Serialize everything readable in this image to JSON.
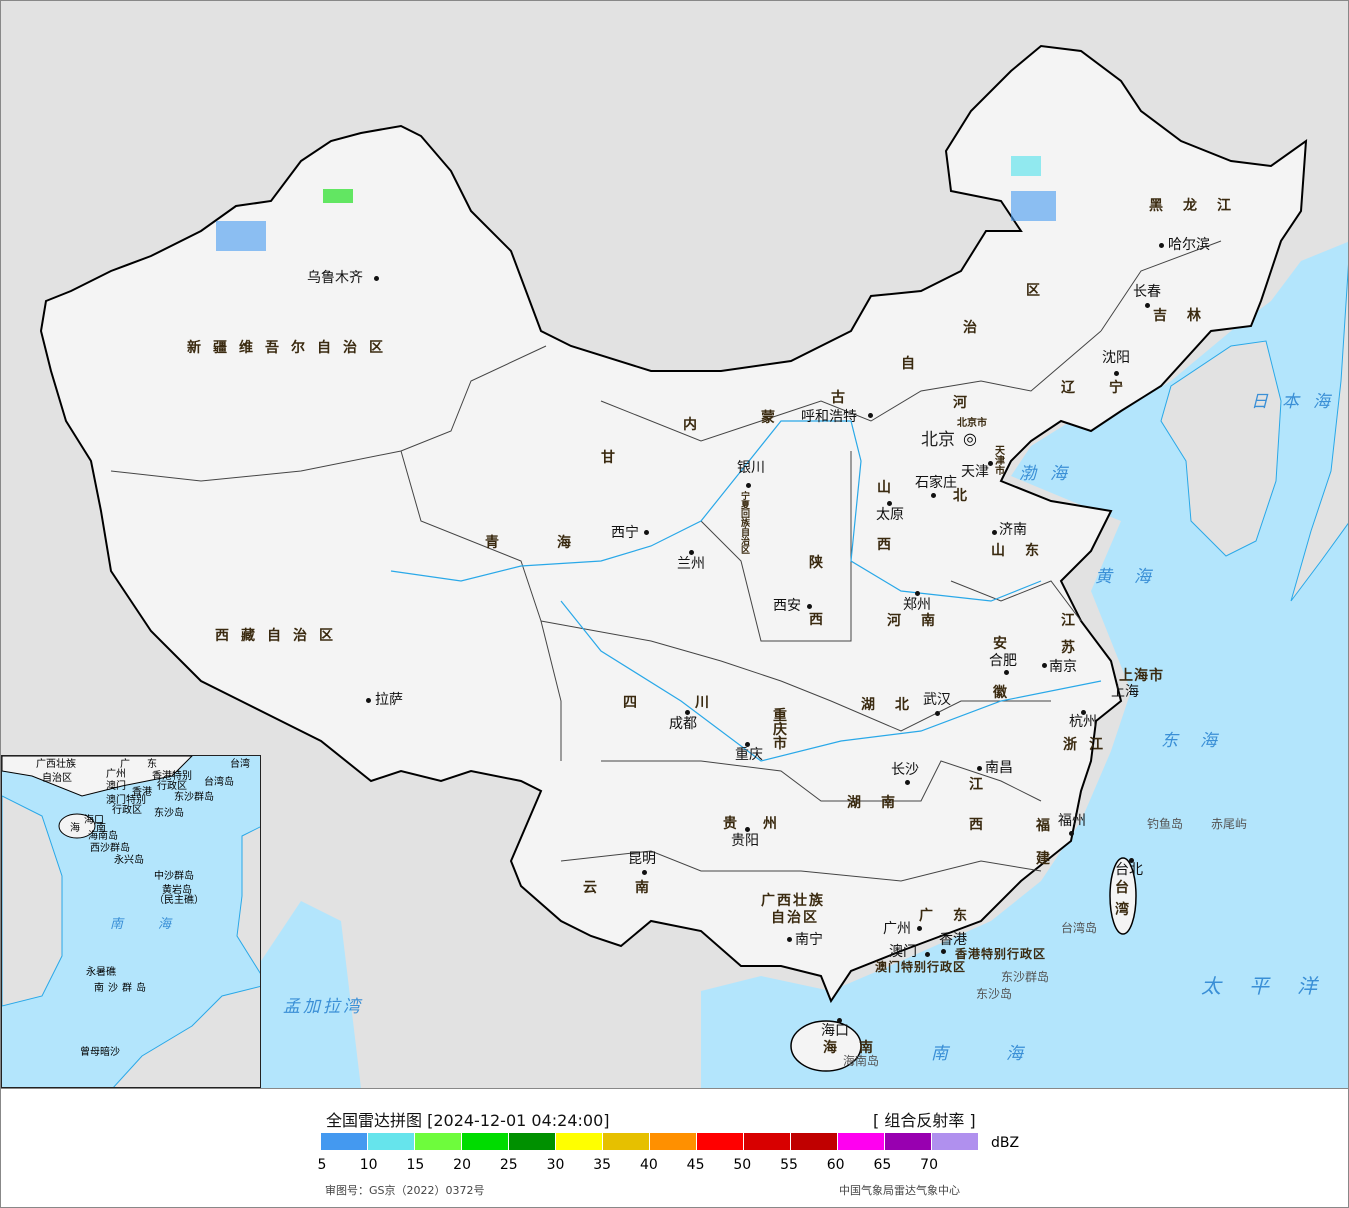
{
  "legend": {
    "title": "全国雷达拼图 [2024-12-01 04:24:00]",
    "product": "[ 组合反射率 ]",
    "unit": "dBZ",
    "colors": [
      "#4499f0",
      "#66e4ec",
      "#6efc3c",
      "#00dc00",
      "#009000",
      "#ffff00",
      "#e6c000",
      "#ff9000",
      "#ff0000",
      "#d80000",
      "#c00000",
      "#ff00f0",
      "#9800b0",
      "#b090ee"
    ],
    "ticks": [
      "5",
      "10",
      "15",
      "20",
      "25",
      "30",
      "35",
      "40",
      "45",
      "50",
      "55",
      "60",
      "65",
      "70"
    ],
    "approval": "审图号：GS京（2022）0372号",
    "source": "中国气象局雷达气象中心"
  },
  "map": {
    "provinces": [
      "新疆维吾尔自治区",
      "西藏自治区",
      "青",
      "海",
      "四",
      "川",
      "甘",
      "内",
      "蒙",
      "古",
      "自",
      "治",
      "区",
      "黑龙江",
      "吉林",
      "辽",
      "宁",
      "河",
      "北",
      "山",
      "西",
      "陕",
      "西",
      "河南",
      "山东",
      "江",
      "苏",
      "安",
      "徽",
      "湖北",
      "湖南",
      "江",
      "西",
      "浙江",
      "福",
      "建",
      "贵州",
      "云南",
      "广西壮族",
      "自治区",
      "广东",
      "海南",
      "台",
      "湾",
      "重庆市",
      "上海市",
      "香港特别行政区",
      "澳门特别行政区",
      "北京市",
      "天津市",
      "宁夏回族自治区"
    ],
    "cities": [
      "乌鲁木齐",
      "拉萨",
      "西宁",
      "兰州",
      "银川",
      "呼和浩特",
      "北京",
      "石家庄",
      "太原",
      "济南",
      "郑州",
      "西安",
      "合肥",
      "南京",
      "上海",
      "杭州",
      "武汉",
      "成都",
      "重庆",
      "长沙",
      "南昌",
      "福州",
      "贵阳",
      "昆明",
      "南宁",
      "广州",
      "澳门",
      "香港",
      "海口",
      "哈尔滨",
      "长春",
      "沈阳",
      "台北",
      "天津"
    ],
    "minor": [
      "台湾岛",
      "钓鱼岛",
      "赤尾屿",
      "东沙群岛",
      "东沙岛",
      "海南岛"
    ],
    "seas": [
      "日本海",
      "渤海",
      "黄海",
      "东海",
      "太平洋",
      "南海",
      "孟加拉湾"
    ],
    "capital_icon": "bullseye-icon",
    "colors": {
      "land": "#f4f4f4",
      "ocean": "#b3e5fc",
      "neighbor": "#e2e2e2",
      "border": "#000000",
      "province_label": "#3a2a10",
      "sea_label": "#3a8fd6"
    }
  },
  "inset": {
    "labels": [
      "广西壮族",
      "自治区",
      "广",
      "东",
      "台湾",
      "广州",
      "澳门",
      "香港",
      "香港特别",
      "行政区",
      "台湾岛",
      "澳门特别",
      "行政区",
      "东沙群岛",
      "东沙岛",
      "海口",
      "海",
      "南",
      "海南岛",
      "西沙群岛",
      "永兴岛",
      "中沙群岛",
      "黄岩岛",
      "（民主礁）",
      "南",
      "海",
      "永暑礁",
      "南沙群岛",
      "曾母暗沙"
    ]
  }
}
